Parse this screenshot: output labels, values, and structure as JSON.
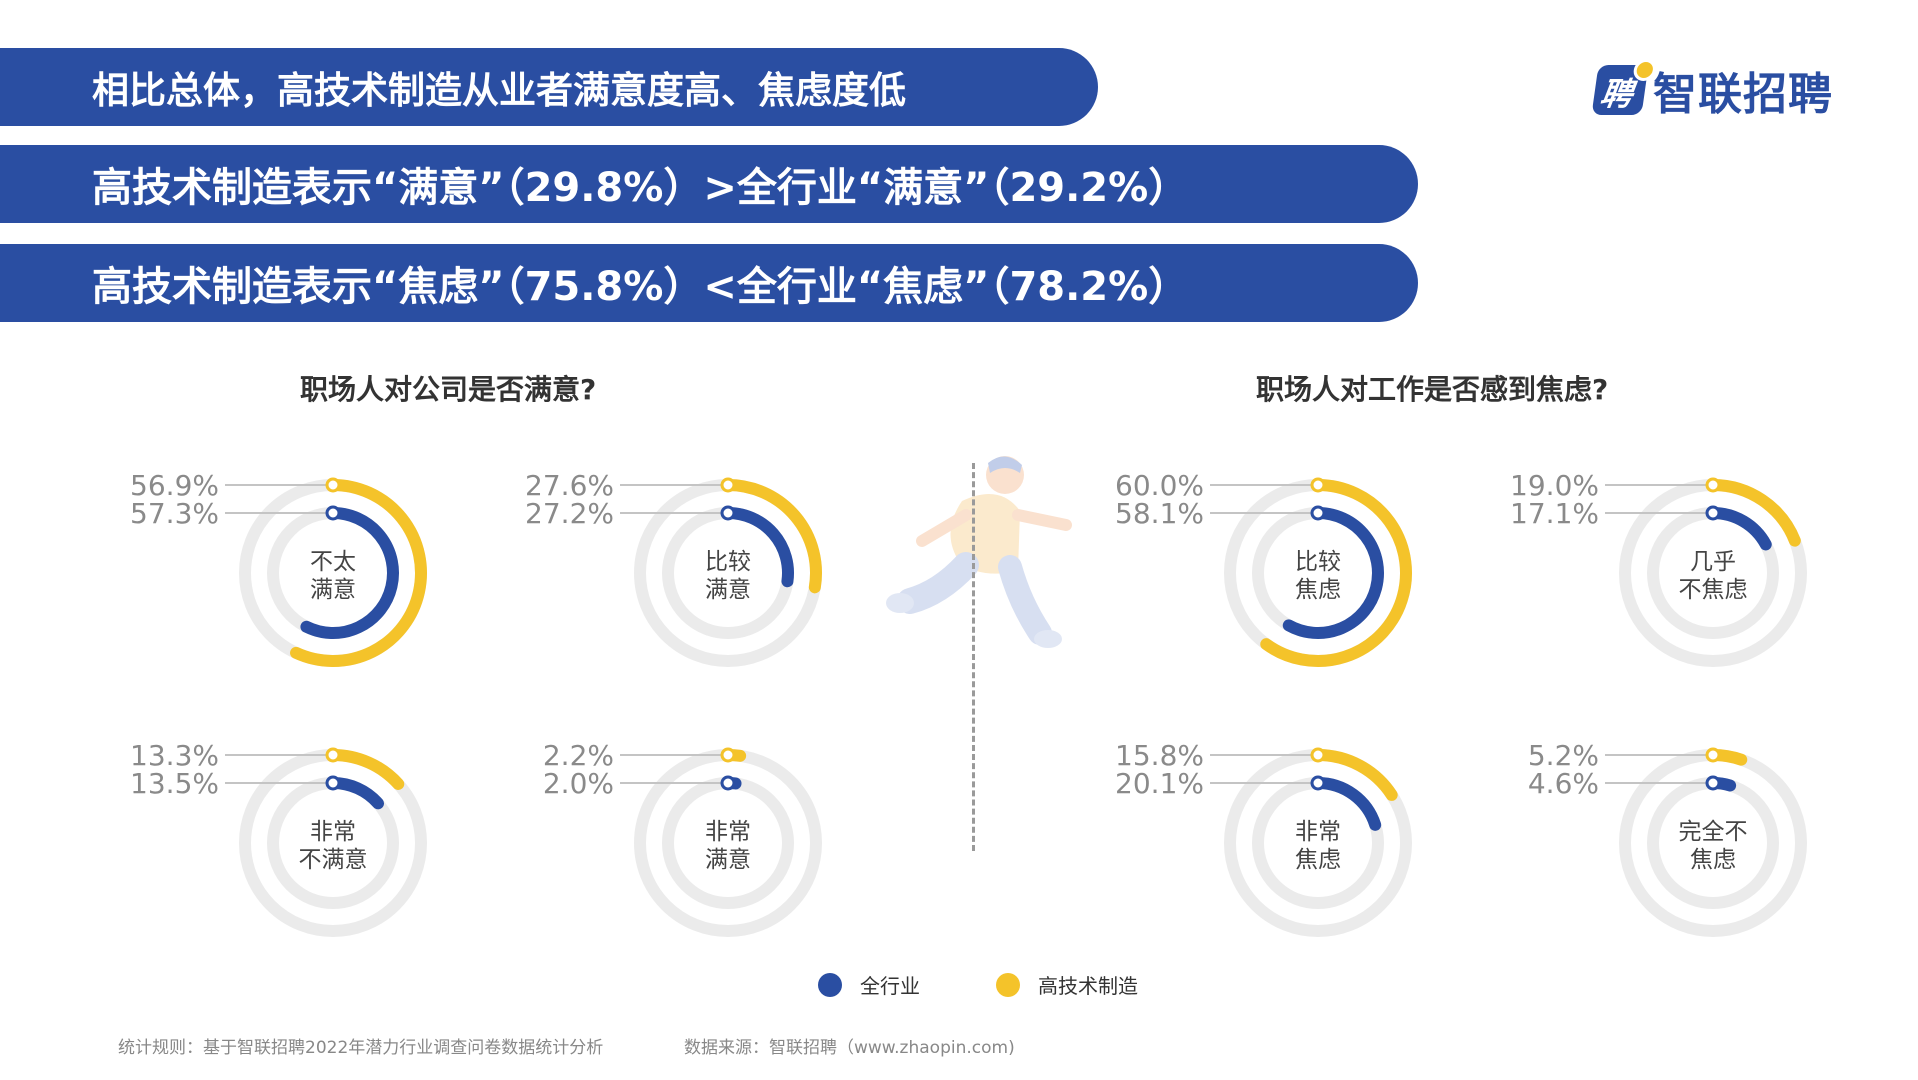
{
  "banners": {
    "line1": "相比总体，高技术制造从业者满意度高、焦虑度低",
    "line2": "高技术制造表示“满意”（29.8%）>全行业“满意”（29.2%）",
    "line3": "高技术制造表示“焦虑”（75.8%）<全行业“焦虑”（78.2%）"
  },
  "logo": {
    "text": "智联招聘",
    "mark": "聘"
  },
  "titles": {
    "left": "职场人对公司是否满意?",
    "right": "职场人对工作是否感到焦虑?"
  },
  "legend": {
    "all": "全行业",
    "hightech": "高技术制造"
  },
  "colors": {
    "all": "#2a4ea2",
    "hightech": "#f4c32a",
    "track": "#ebebeb",
    "banner": "#2a4ea2"
  },
  "icons": {
    "runner": "running-person-illustration"
  },
  "footer": {
    "rule": "统计规则：基于智联招聘2022年潜力行业调查问卷数据统计分析",
    "source": "数据来源：智联招聘（www.zhaopin.com)"
  },
  "chart_data": [
    {
      "type": "donut",
      "label_lines": [
        "不太",
        "满意"
      ],
      "series": [
        {
          "name": "高技术制造",
          "value": 56.9,
          "text": "56.9%"
        },
        {
          "name": "全行业",
          "value": 57.3,
          "text": "57.3%"
        }
      ]
    },
    {
      "type": "donut",
      "label_lines": [
        "比较",
        "满意"
      ],
      "series": [
        {
          "name": "高技术制造",
          "value": 27.6,
          "text": "27.6%"
        },
        {
          "name": "全行业",
          "value": 27.2,
          "text": "27.2%"
        }
      ]
    },
    {
      "type": "donut",
      "label_lines": [
        "非常",
        "不满意"
      ],
      "series": [
        {
          "name": "高技术制造",
          "value": 13.3,
          "text": "13.3%"
        },
        {
          "name": "全行业",
          "value": 13.5,
          "text": "13.5%"
        }
      ]
    },
    {
      "type": "donut",
      "label_lines": [
        "非常",
        "满意"
      ],
      "series": [
        {
          "name": "高技术制造",
          "value": 2.2,
          "text": "2.2%"
        },
        {
          "name": "全行业",
          "value": 2.0,
          "text": "2.0%"
        }
      ]
    },
    {
      "type": "donut",
      "label_lines": [
        "比较",
        "焦虑"
      ],
      "series": [
        {
          "name": "高技术制造",
          "value": 60.0,
          "text": "60.0%"
        },
        {
          "name": "全行业",
          "value": 58.1,
          "text": "58.1%"
        }
      ]
    },
    {
      "type": "donut",
      "label_lines": [
        "几乎",
        "不焦虑"
      ],
      "series": [
        {
          "name": "高技术制造",
          "value": 19.0,
          "text": "19.0%"
        },
        {
          "name": "全行业",
          "value": 17.1,
          "text": "17.1%"
        }
      ]
    },
    {
      "type": "donut",
      "label_lines": [
        "非常",
        "焦虑"
      ],
      "series": [
        {
          "name": "高技术制造",
          "value": 15.8,
          "text": "15.8%"
        },
        {
          "name": "全行业",
          "value": 20.1,
          "text": "20.1%"
        }
      ]
    },
    {
      "type": "donut",
      "label_lines": [
        "完全不",
        "焦虑"
      ],
      "series": [
        {
          "name": "高技术制造",
          "value": 5.2,
          "text": "5.2%"
        },
        {
          "name": "全行业",
          "value": 4.6,
          "text": "4.6%"
        }
      ]
    }
  ]
}
